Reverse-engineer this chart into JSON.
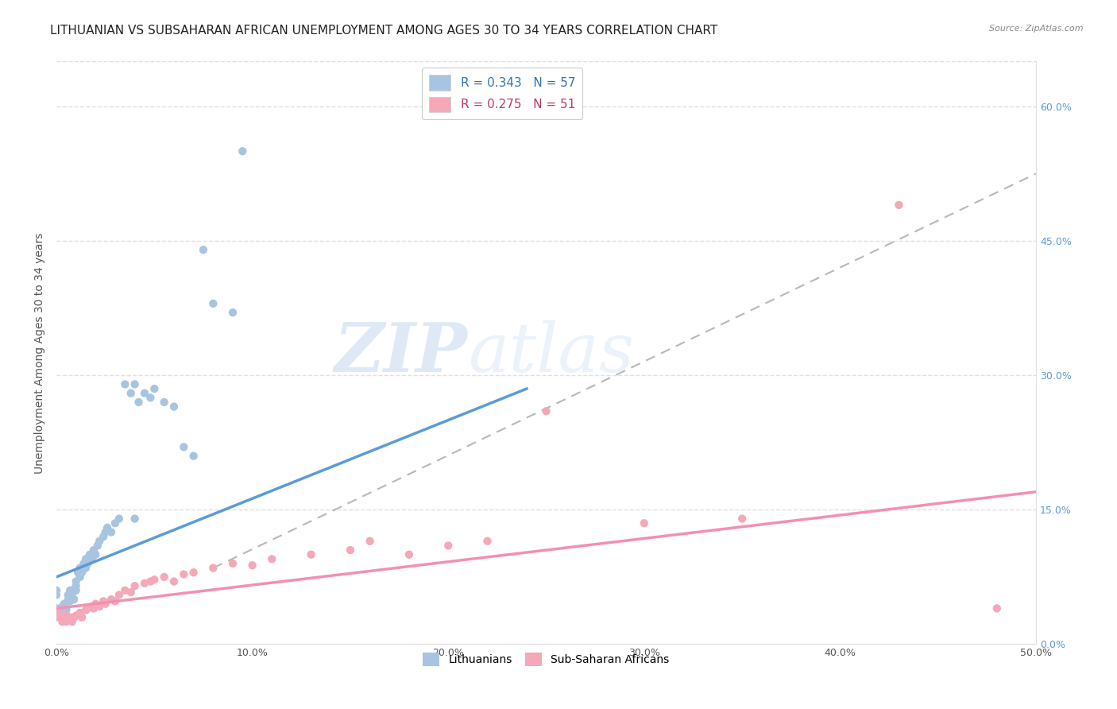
{
  "title": "LITHUANIAN VS SUBSAHARAN AFRICAN UNEMPLOYMENT AMONG AGES 30 TO 34 YEARS CORRELATION CHART",
  "source": "Source: ZipAtlas.com",
  "ylabel": "Unemployment Among Ages 30 to 34 years",
  "xlim": [
    0.0,
    0.5
  ],
  "ylim": [
    0.0,
    0.65
  ],
  "legend_entries": [
    {
      "label": "R = 0.343   N = 57",
      "color": "#a8c4e0"
    },
    {
      "label": "R = 0.275   N = 51",
      "color": "#f4a8b8"
    }
  ],
  "legend_bottom": [
    "Lithuanians",
    "Sub-Saharan Africans"
  ],
  "legend_bottom_colors": [
    "#a8c4e0",
    "#f4a8b8"
  ],
  "blue_scatter_x": [
    0.0,
    0.0,
    0.0,
    0.002,
    0.002,
    0.003,
    0.003,
    0.004,
    0.004,
    0.005,
    0.005,
    0.006,
    0.006,
    0.007,
    0.007,
    0.008,
    0.008,
    0.009,
    0.01,
    0.01,
    0.01,
    0.011,
    0.012,
    0.012,
    0.013,
    0.014,
    0.015,
    0.015,
    0.016,
    0.017,
    0.018,
    0.019,
    0.02,
    0.021,
    0.022,
    0.024,
    0.025,
    0.026,
    0.028,
    0.03,
    0.032,
    0.035,
    0.038,
    0.04,
    0.042,
    0.045,
    0.048,
    0.05,
    0.055,
    0.06,
    0.065,
    0.07,
    0.075,
    0.08,
    0.09,
    0.095,
    0.04
  ],
  "blue_scatter_y": [
    0.055,
    0.06,
    0.04,
    0.035,
    0.04,
    0.038,
    0.042,
    0.045,
    0.035,
    0.04,
    0.038,
    0.05,
    0.055,
    0.06,
    0.048,
    0.055,
    0.06,
    0.05,
    0.06,
    0.07,
    0.065,
    0.08,
    0.075,
    0.085,
    0.08,
    0.09,
    0.085,
    0.095,
    0.09,
    0.1,
    0.095,
    0.105,
    0.1,
    0.11,
    0.115,
    0.12,
    0.125,
    0.13,
    0.125,
    0.135,
    0.14,
    0.29,
    0.28,
    0.29,
    0.27,
    0.28,
    0.275,
    0.285,
    0.27,
    0.265,
    0.22,
    0.21,
    0.44,
    0.38,
    0.37,
    0.55,
    0.14
  ],
  "pink_scatter_x": [
    0.0,
    0.001,
    0.002,
    0.003,
    0.003,
    0.004,
    0.005,
    0.005,
    0.006,
    0.007,
    0.008,
    0.009,
    0.01,
    0.012,
    0.013,
    0.015,
    0.016,
    0.018,
    0.019,
    0.02,
    0.022,
    0.024,
    0.025,
    0.028,
    0.03,
    0.032,
    0.035,
    0.038,
    0.04,
    0.045,
    0.048,
    0.05,
    0.055,
    0.06,
    0.065,
    0.07,
    0.08,
    0.09,
    0.1,
    0.11,
    0.13,
    0.15,
    0.16,
    0.18,
    0.2,
    0.22,
    0.25,
    0.3,
    0.35,
    0.43,
    0.48
  ],
  "pink_scatter_y": [
    0.03,
    0.035,
    0.03,
    0.025,
    0.03,
    0.028,
    0.025,
    0.032,
    0.028,
    0.03,
    0.025,
    0.03,
    0.032,
    0.035,
    0.03,
    0.038,
    0.04,
    0.042,
    0.04,
    0.045,
    0.042,
    0.048,
    0.045,
    0.05,
    0.048,
    0.055,
    0.06,
    0.058,
    0.065,
    0.068,
    0.07,
    0.072,
    0.075,
    0.07,
    0.078,
    0.08,
    0.085,
    0.09,
    0.088,
    0.095,
    0.1,
    0.105,
    0.115,
    0.1,
    0.11,
    0.115,
    0.26,
    0.135,
    0.14,
    0.49,
    0.04
  ],
  "blue_line_x": [
    0.0,
    0.24
  ],
  "blue_line_y": [
    0.075,
    0.285
  ],
  "pink_line_x": [
    0.0,
    0.5
  ],
  "pink_line_y": [
    0.04,
    0.17
  ],
  "dashed_line_x": [
    0.08,
    0.5
  ],
  "dashed_line_y": [
    0.085,
    0.525
  ],
  "watermark_zip": "ZIP",
  "watermark_atlas": "atlas",
  "blue_color": "#5b9bd5",
  "pink_color": "#f48fb1",
  "blue_scatter_color": "#a8c4e0",
  "pink_scatter_color": "#f4a8b8",
  "dashed_color": "#b8b8b8",
  "grid_color": "#e0e0e0",
  "background_color": "#ffffff",
  "title_fontsize": 11,
  "axis_label_fontsize": 10,
  "tick_fontsize": 9
}
